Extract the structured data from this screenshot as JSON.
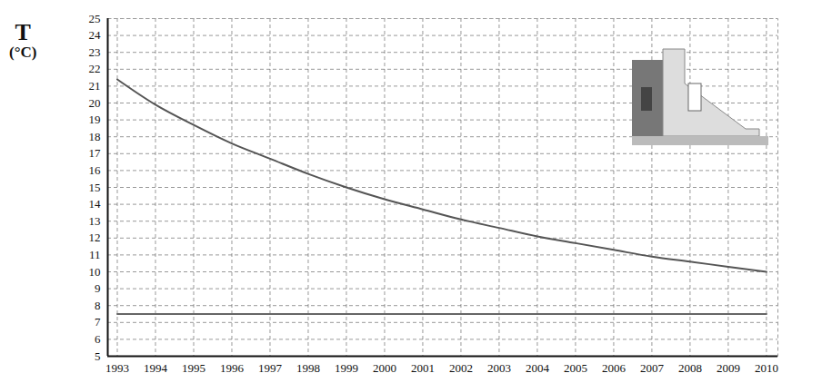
{
  "chart_data": {
    "type": "line",
    "ylabel": "T (°C)",
    "x": [
      1993,
      1994,
      1995,
      1996,
      1997,
      1998,
      1999,
      2000,
      2001,
      2002,
      2003,
      2004,
      2005,
      2006,
      2007,
      2008,
      2009,
      2010
    ],
    "series": [
      {
        "color": "#555555",
        "line_style": "solid",
        "values": [
          21.4,
          19.9,
          18.7,
          17.6,
          16.7,
          15.8,
          15.0,
          14.3,
          13.7,
          13.1,
          12.6,
          12.1,
          11.7,
          11.3,
          10.9,
          10.6,
          10.3,
          10.0
        ]
      },
      {
        "color": "#666666",
        "line_style": "solid",
        "values": [
          7.5,
          7.5,
          7.5,
          7.5,
          7.5,
          7.5,
          7.5,
          7.5,
          7.5,
          7.5,
          7.5,
          7.5,
          7.5,
          7.5,
          7.5,
          7.5,
          7.5,
          7.5
        ]
      }
    ],
    "xlim": [
      1992.75,
      2010.3
    ],
    "xticks": [
      1993,
      1994,
      1995,
      1996,
      1997,
      1998,
      1999,
      2000,
      2001,
      2002,
      2003,
      2004,
      2005,
      2006,
      2007,
      2008,
      2009,
      2010
    ],
    "ylim": [
      5,
      25
    ],
    "yticks": [
      5,
      6,
      7,
      8,
      9,
      10,
      11,
      12,
      13,
      14,
      15,
      16,
      17,
      18,
      19,
      20,
      21,
      22,
      23,
      24,
      25
    ],
    "grid": true
  }
}
